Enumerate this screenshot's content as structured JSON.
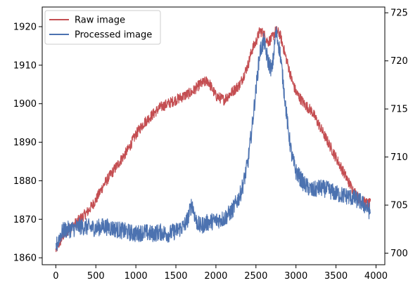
{
  "chart_data": {
    "type": "line",
    "title": "",
    "xlabel": "",
    "ylabel": "",
    "xlim": [
      -170,
      4110
    ],
    "ylim_left": [
      1858.2,
      1925.1
    ],
    "ylim_right": [
      698.8,
      725.6
    ],
    "x_ticks": [
      0,
      500,
      1000,
      1500,
      2000,
      2500,
      3000,
      3500,
      4000
    ],
    "y_left_ticks": [
      1860,
      1870,
      1880,
      1890,
      1900,
      1910,
      1920
    ],
    "y_right_ticks": [
      700,
      705,
      710,
      715,
      720,
      725
    ],
    "grid": false,
    "legend": "upper-left",
    "series": [
      {
        "name": "Raw image",
        "axis": "left",
        "color": "#c44e52",
        "noise": 1.4,
        "x": [
          0,
          50,
          100,
          200,
          300,
          400,
          500,
          600,
          700,
          800,
          900,
          1000,
          1100,
          1200,
          1300,
          1400,
          1500,
          1600,
          1700,
          1800,
          1900,
          2000,
          2100,
          2200,
          2300,
          2400,
          2450,
          2500,
          2550,
          2600,
          2650,
          2700,
          2750,
          2800,
          2850,
          2900,
          2950,
          3000,
          3100,
          3200,
          3300,
          3400,
          3500,
          3600,
          3700,
          3800,
          3900,
          3930
        ],
        "values": [
          1862,
          1864,
          1866,
          1868,
          1870,
          1872,
          1875,
          1879,
          1882,
          1885,
          1888,
          1892,
          1895,
          1897,
          1899,
          1900,
          1901,
          1902,
          1903,
          1905,
          1906,
          1902,
          1901,
          1903,
          1905,
          1910,
          1914,
          1916,
          1919,
          1918,
          1916,
          1917,
          1919,
          1918,
          1914,
          1910,
          1906,
          1903,
          1900,
          1898,
          1894,
          1890,
          1886,
          1882,
          1878,
          1875,
          1874,
          1874
        ]
      },
      {
        "name": "Processed image",
        "axis": "right",
        "color": "#4c72b0",
        "noise": 0.9,
        "x": [
          0,
          50,
          100,
          200,
          300,
          400,
          500,
          600,
          700,
          800,
          900,
          1000,
          1100,
          1200,
          1300,
          1400,
          1500,
          1600,
          1650,
          1700,
          1750,
          1800,
          1900,
          2000,
          2100,
          2200,
          2300,
          2350,
          2400,
          2450,
          2500,
          2550,
          2600,
          2650,
          2700,
          2750,
          2800,
          2850,
          2900,
          2950,
          3000,
          3100,
          3200,
          3300,
          3400,
          3500,
          3600,
          3700,
          3800,
          3900,
          3930
        ],
        "values": [
          700.6,
          701.8,
          702.4,
          702.5,
          702.8,
          702.7,
          702.6,
          702.8,
          702.6,
          702.4,
          702.2,
          702.0,
          702.2,
          702.0,
          702.2,
          702.0,
          702.3,
          702.8,
          703.6,
          705.2,
          703.4,
          702.8,
          703.2,
          703.4,
          703.6,
          704.4,
          706.0,
          707.5,
          709.5,
          713.0,
          717.0,
          721.0,
          722.0,
          720.0,
          719.0,
          723.0,
          721.0,
          717.0,
          713.0,
          710.0,
          708.5,
          707.2,
          706.5,
          706.8,
          706.6,
          706.2,
          706.0,
          705.8,
          705.4,
          704.6,
          704.2
        ]
      }
    ]
  }
}
